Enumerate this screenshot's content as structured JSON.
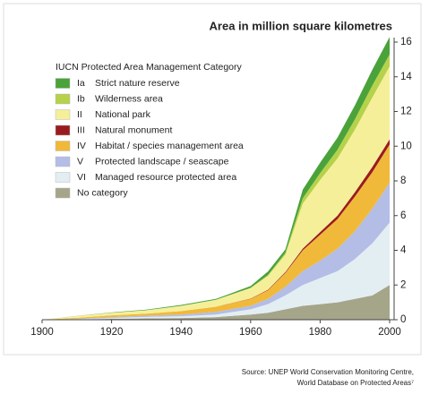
{
  "chart_data": {
    "type": "stacked_area",
    "title": "Area in million square kilometres",
    "legend_title": "IUCN Protected Area Management Category",
    "source": [
      "Source: UNEP World Conservation Monitoring Centre,",
      "World Database on Protected Areas⁷"
    ],
    "x": [
      1900,
      1910,
      1920,
      1930,
      1940,
      1950,
      1960,
      1965,
      1970,
      1975,
      1980,
      1985,
      1990,
      1995,
      2000
    ],
    "series": [
      {
        "name": "No category",
        "color": "#a5a58a",
        "values": [
          0,
          0.02,
          0.05,
          0.08,
          0.1,
          0.15,
          0.3,
          0.4,
          0.6,
          0.8,
          0.9,
          1.0,
          1.2,
          1.4,
          2.0
        ]
      },
      {
        "code": "VI",
        "name": "Managed resource protected area",
        "color": "#e3eef3",
        "values": [
          0,
          0.02,
          0.05,
          0.08,
          0.1,
          0.15,
          0.3,
          0.5,
          0.8,
          1.2,
          1.5,
          1.8,
          2.3,
          3.0,
          3.6
        ]
      },
      {
        "code": "V",
        "name": "Protected landscape / seascape",
        "color": "#b3bde6",
        "values": [
          0,
          0.02,
          0.05,
          0.07,
          0.1,
          0.15,
          0.2,
          0.3,
          0.5,
          0.8,
          1.0,
          1.3,
          1.6,
          2.0,
          2.3
        ]
      },
      {
        "code": "IV",
        "name": "Habitat / species management area",
        "color": "#f0b93a",
        "values": [
          0,
          0.05,
          0.1,
          0.12,
          0.2,
          0.3,
          0.4,
          0.5,
          0.8,
          1.2,
          1.5,
          1.7,
          2.0,
          2.1,
          2.2
        ]
      },
      {
        "code": "III",
        "name": "Natural monument",
        "color": "#9a1b1e",
        "values": [
          0,
          0,
          0,
          0,
          0,
          0,
          0.02,
          0.03,
          0.05,
          0.1,
          0.15,
          0.2,
          0.25,
          0.3,
          0.3
        ]
      },
      {
        "code": "II",
        "name": "National park",
        "color": "#f6ef9a",
        "values": [
          0,
          0.1,
          0.15,
          0.2,
          0.3,
          0.4,
          0.6,
          0.8,
          1.0,
          2.6,
          3.0,
          3.3,
          3.6,
          4.0,
          4.2
        ]
      },
      {
        "code": "Ib",
        "name": "Wilderness area",
        "color": "#b5d24a",
        "values": [
          0,
          0,
          0,
          0,
          0,
          0,
          0.02,
          0.05,
          0.1,
          0.3,
          0.4,
          0.5,
          0.6,
          0.7,
          0.7
        ]
      },
      {
        "code": "Ia",
        "name": "Strict nature reserve",
        "color": "#4aa23a",
        "values": [
          0,
          0.01,
          0.02,
          0.03,
          0.05,
          0.05,
          0.1,
          0.2,
          0.2,
          0.5,
          0.6,
          0.7,
          0.8,
          0.9,
          1.0
        ]
      }
    ],
    "xlim": [
      1900,
      2000
    ],
    "xticks": [
      1900,
      1920,
      1940,
      1960,
      1980,
      2000
    ],
    "ylim": [
      0,
      16
    ],
    "yticks": [
      0,
      2,
      4,
      6,
      8,
      10,
      12,
      14,
      16
    ]
  }
}
